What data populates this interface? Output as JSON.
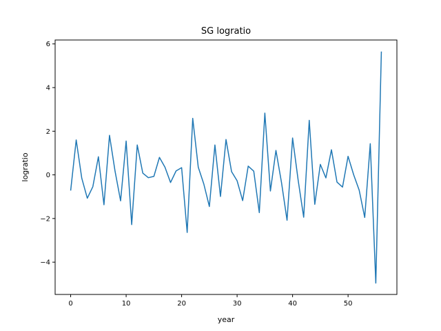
{
  "chart_data": {
    "type": "line",
    "title": "SG logratio",
    "xlabel": "year",
    "ylabel": "logratio",
    "xlim": [
      -2.8,
      58.8
    ],
    "ylim": [
      -5.48,
      6.18
    ],
    "xticks": [
      0,
      10,
      20,
      30,
      40,
      50
    ],
    "yticks": [
      -4,
      -2,
      0,
      2,
      4,
      6
    ],
    "grid": false,
    "legend": "none",
    "series": [
      {
        "color": "#1f77b4",
        "x": [
          0,
          1,
          2,
          3,
          4,
          5,
          6,
          7,
          8,
          9,
          10,
          11,
          12,
          13,
          14,
          15,
          16,
          17,
          18,
          19,
          20,
          21,
          22,
          23,
          24,
          25,
          26,
          27,
          28,
          29,
          30,
          31,
          32,
          33,
          34,
          35,
          36,
          37,
          38,
          39,
          40,
          41,
          42,
          43,
          44,
          45,
          46,
          47,
          48,
          49,
          50,
          51,
          52,
          53,
          54,
          55,
          56
        ],
        "y": [
          -0.72,
          1.6,
          -0.15,
          -1.07,
          -0.54,
          0.83,
          -1.37,
          1.81,
          0.17,
          -1.19,
          1.55,
          -2.28,
          1.37,
          0.08,
          -0.13,
          -0.07,
          0.8,
          0.35,
          -0.35,
          0.18,
          0.33,
          -2.64,
          2.59,
          0.35,
          -0.42,
          -1.45,
          1.37,
          -0.99,
          1.62,
          0.15,
          -0.27,
          -1.18,
          0.4,
          0.17,
          -1.73,
          2.83,
          -0.74,
          1.12,
          -0.35,
          -2.08,
          1.69,
          -0.24,
          -1.94,
          2.5,
          -1.35,
          0.48,
          -0.14,
          1.15,
          -0.33,
          -0.56,
          0.85,
          0.01,
          -0.7,
          -1.95,
          1.43,
          -4.96,
          5.65
        ]
      }
    ]
  }
}
